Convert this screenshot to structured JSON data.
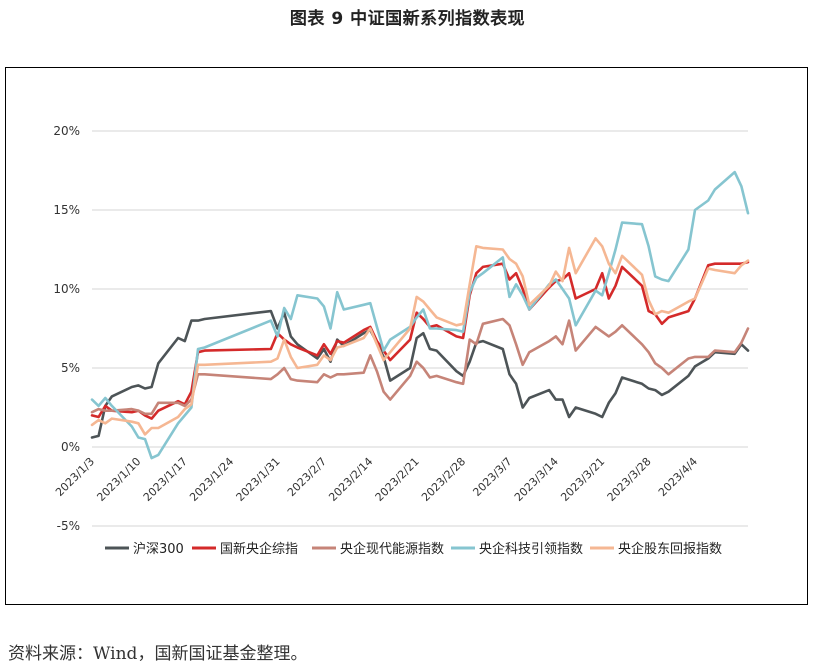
{
  "title": "图表 9  中证国新系列指数表现",
  "source": "资料来源：Wind，国新国证基金整理。",
  "chart_data": {
    "type": "line",
    "title": "图表 9  中证国新系列指数表现",
    "ylim": [
      -5,
      20
    ],
    "yticks": [
      -5,
      0,
      5,
      10,
      15,
      20
    ],
    "ytick_labels": [
      "-5%",
      "0%",
      "5%",
      "10%",
      "15%",
      "20%"
    ],
    "x_start": "2023/1/3",
    "x_end": "2023/4/12",
    "xticks": [
      "2023/1/3",
      "2023/1/10",
      "2023/1/17",
      "2023/1/24",
      "2023/1/31",
      "2023/2/7",
      "2023/2/14",
      "2023/2/21",
      "2023/2/28",
      "2023/3/7",
      "2023/3/14",
      "2023/3/21",
      "2023/3/28",
      "2023/4/4"
    ],
    "grid": true,
    "legend_position": "bottom",
    "dates": [
      "2023/1/3",
      "2023/1/4",
      "2023/1/5",
      "2023/1/6",
      "2023/1/9",
      "2023/1/10",
      "2023/1/11",
      "2023/1/12",
      "2023/1/13",
      "2023/1/16",
      "2023/1/17",
      "2023/1/18",
      "2023/1/19",
      "2023/1/20",
      "2023/1/30",
      "2023/1/31",
      "2023/2/1",
      "2023/2/2",
      "2023/2/3",
      "2023/2/6",
      "2023/2/7",
      "2023/2/8",
      "2023/2/9",
      "2023/2/10",
      "2023/2/13",
      "2023/2/14",
      "2023/2/15",
      "2023/2/16",
      "2023/2/17",
      "2023/2/20",
      "2023/2/21",
      "2023/2/22",
      "2023/2/23",
      "2023/2/24",
      "2023/2/27",
      "2023/2/28",
      "2023/3/1",
      "2023/3/2",
      "2023/3/3",
      "2023/3/6",
      "2023/3/7",
      "2023/3/8",
      "2023/3/9",
      "2023/3/10",
      "2023/3/13",
      "2023/3/14",
      "2023/3/15",
      "2023/3/16",
      "2023/3/17",
      "2023/3/20",
      "2023/3/21",
      "2023/3/22",
      "2023/3/23",
      "2023/3/24",
      "2023/3/27",
      "2023/3/28",
      "2023/3/29",
      "2023/3/30",
      "2023/3/31",
      "2023/4/3",
      "2023/4/4",
      "2023/4/6",
      "2023/4/7",
      "2023/4/10",
      "2023/4/11",
      "2023/4/12"
    ],
    "series": [
      {
        "name": "沪深300",
        "color": "#4d5457",
        "values": [
          0.6,
          0.7,
          2.6,
          3.2,
          3.8,
          3.9,
          3.7,
          3.8,
          5.3,
          6.9,
          6.7,
          8.0,
          8.0,
          8.1,
          8.6,
          7.5,
          8.5,
          7.0,
          6.5,
          5.6,
          6.2,
          5.4,
          6.8,
          6.4,
          7.2,
          7.4,
          6.6,
          5.7,
          4.2,
          5.0,
          6.9,
          7.2,
          6.2,
          6.1,
          4.8,
          4.5,
          5.4,
          6.6,
          6.7,
          6.2,
          4.6,
          4.0,
          2.5,
          3.1,
          3.6,
          3.0,
          3.0,
          1.9,
          2.5,
          2.1,
          1.9,
          2.8,
          3.4,
          4.4,
          4.0,
          3.7,
          3.6,
          3.3,
          3.5,
          4.5,
          5.1,
          5.6,
          6.0,
          5.9,
          6.5,
          6.1
        ]
      },
      {
        "name": "国新央企综指",
        "color": "#d42a2a",
        "values": [
          2.0,
          1.9,
          2.6,
          2.3,
          2.2,
          2.3,
          2.0,
          1.8,
          2.3,
          2.9,
          2.7,
          3.5,
          6.0,
          6.1,
          6.2,
          7.2,
          6.8,
          6.5,
          6.3,
          5.8,
          6.5,
          5.9,
          6.7,
          6.6,
          7.4,
          7.6,
          6.7,
          6.1,
          5.5,
          6.8,
          8.5,
          8.1,
          7.6,
          7.7,
          7.0,
          6.9,
          9.6,
          11.0,
          11.4,
          11.6,
          10.6,
          11.0,
          10.0,
          8.7,
          10.1,
          10.5,
          10.6,
          11.0,
          9.4,
          10.0,
          11.0,
          9.4,
          10.2,
          11.4,
          10.2,
          8.6,
          8.4,
          7.8,
          8.2,
          8.6,
          9.4,
          11.5,
          11.6,
          11.6,
          11.6,
          11.7
        ]
      },
      {
        "name": "央企现代能源指数",
        "color": "#c68478",
        "values": [
          2.2,
          2.4,
          2.3,
          2.3,
          2.4,
          2.3,
          2.1,
          2.1,
          2.8,
          2.8,
          2.6,
          3.0,
          4.6,
          4.6,
          4.3,
          4.6,
          5.0,
          4.3,
          4.2,
          4.1,
          4.6,
          4.4,
          4.6,
          4.6,
          4.7,
          5.8,
          4.8,
          3.5,
          3.0,
          4.5,
          5.4,
          5.0,
          4.4,
          4.5,
          4.1,
          4.0,
          6.8,
          6.5,
          7.8,
          8.1,
          7.7,
          6.5,
          5.2,
          6.0,
          6.7,
          7.0,
          6.5,
          8.0,
          6.1,
          7.6,
          7.3,
          7.0,
          7.3,
          7.7,
          6.5,
          6.0,
          5.3,
          5.0,
          4.6,
          5.6,
          5.7,
          5.7,
          6.1,
          6.0,
          6.6,
          7.5
        ]
      },
      {
        "name": "央企科技引领指数",
        "color": "#86c5d0",
        "values": [
          3.0,
          2.6,
          3.1,
          2.6,
          1.3,
          0.6,
          0.5,
          -0.7,
          -0.5,
          1.5,
          2.0,
          2.5,
          6.2,
          6.3,
          8.0,
          7.0,
          8.8,
          8.1,
          9.6,
          9.4,
          8.9,
          7.5,
          9.8,
          8.7,
          9.0,
          9.1,
          7.6,
          6.1,
          6.8,
          7.6,
          8.2,
          8.7,
          7.5,
          7.5,
          7.4,
          7.3,
          9.8,
          10.7,
          11.0,
          12.0,
          9.5,
          10.3,
          9.6,
          8.7,
          10.3,
          10.6,
          10.0,
          9.4,
          7.7,
          9.9,
          9.6,
          11.0,
          12.5,
          14.2,
          14.1,
          12.7,
          10.8,
          10.6,
          10.5,
          12.5,
          15.0,
          15.6,
          16.3,
          17.4,
          16.5,
          14.8
        ]
      },
      {
        "name": "央企股东回报指数",
        "color": "#f5b793",
        "values": [
          1.4,
          1.7,
          1.5,
          1.8,
          1.6,
          1.5,
          0.8,
          1.2,
          1.2,
          1.9,
          2.4,
          2.7,
          5.2,
          5.2,
          5.4,
          5.6,
          6.8,
          5.7,
          5.0,
          5.2,
          5.8,
          5.5,
          6.3,
          6.4,
          6.9,
          7.5,
          6.5,
          5.5,
          6.0,
          7.5,
          9.5,
          9.2,
          8.7,
          8.2,
          7.7,
          7.8,
          10.3,
          12.7,
          12.6,
          12.5,
          11.9,
          11.6,
          10.8,
          9.0,
          10.2,
          11.1,
          10.5,
          12.6,
          11.0,
          13.2,
          12.7,
          11.6,
          11.0,
          12.1,
          10.9,
          9.3,
          8.4,
          8.6,
          8.5,
          9.2,
          9.4,
          11.3,
          11.2,
          11.0,
          11.5,
          11.8
        ]
      }
    ]
  }
}
